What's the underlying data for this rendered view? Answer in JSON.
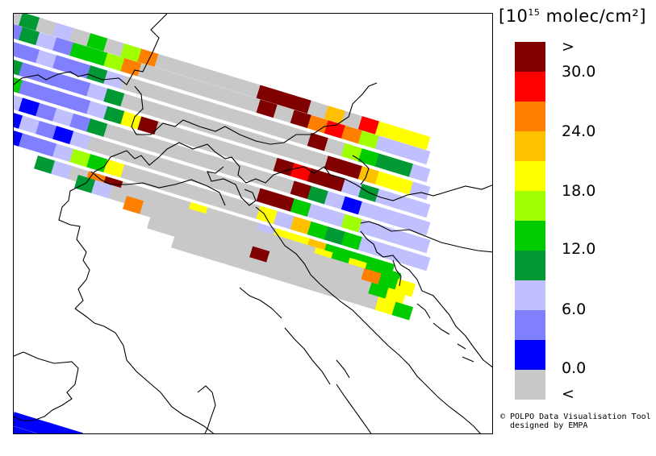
{
  "legend": {
    "title_prefix": "[10",
    "title_exponent": "15",
    "title_suffix": " molec/cm²]",
    "colors": [
      "#800000",
      "#ff0000",
      "#ff8000",
      "#ffc000",
      "#ffff00",
      "#a0ff00",
      "#00cc00",
      "#009933",
      "#c0c0ff",
      "#8080ff",
      "#0000ff",
      "#c8c8c8"
    ],
    "tick_labels": [
      ">",
      "30.0",
      "24.0",
      "18.0",
      "12.0",
      "6.0",
      "0.0",
      "<"
    ]
  },
  "credit": {
    "line1": "© POLPO Data Visualisation Tool",
    "line2": "  designed by EMPA"
  },
  "map": {
    "stripe_colors": {
      "dr": "#800000",
      "r": "#ff0000",
      "o": "#ff8000",
      "ao": "#ffc000",
      "y": "#ffff00",
      "lg": "#a0ff00",
      "g": "#00cc00",
      "dg": "#009933",
      "lb": "#c0c0ff",
      "mb": "#8080ff",
      "b": "#0000ff",
      "gr": "#c8c8c8"
    }
  }
}
